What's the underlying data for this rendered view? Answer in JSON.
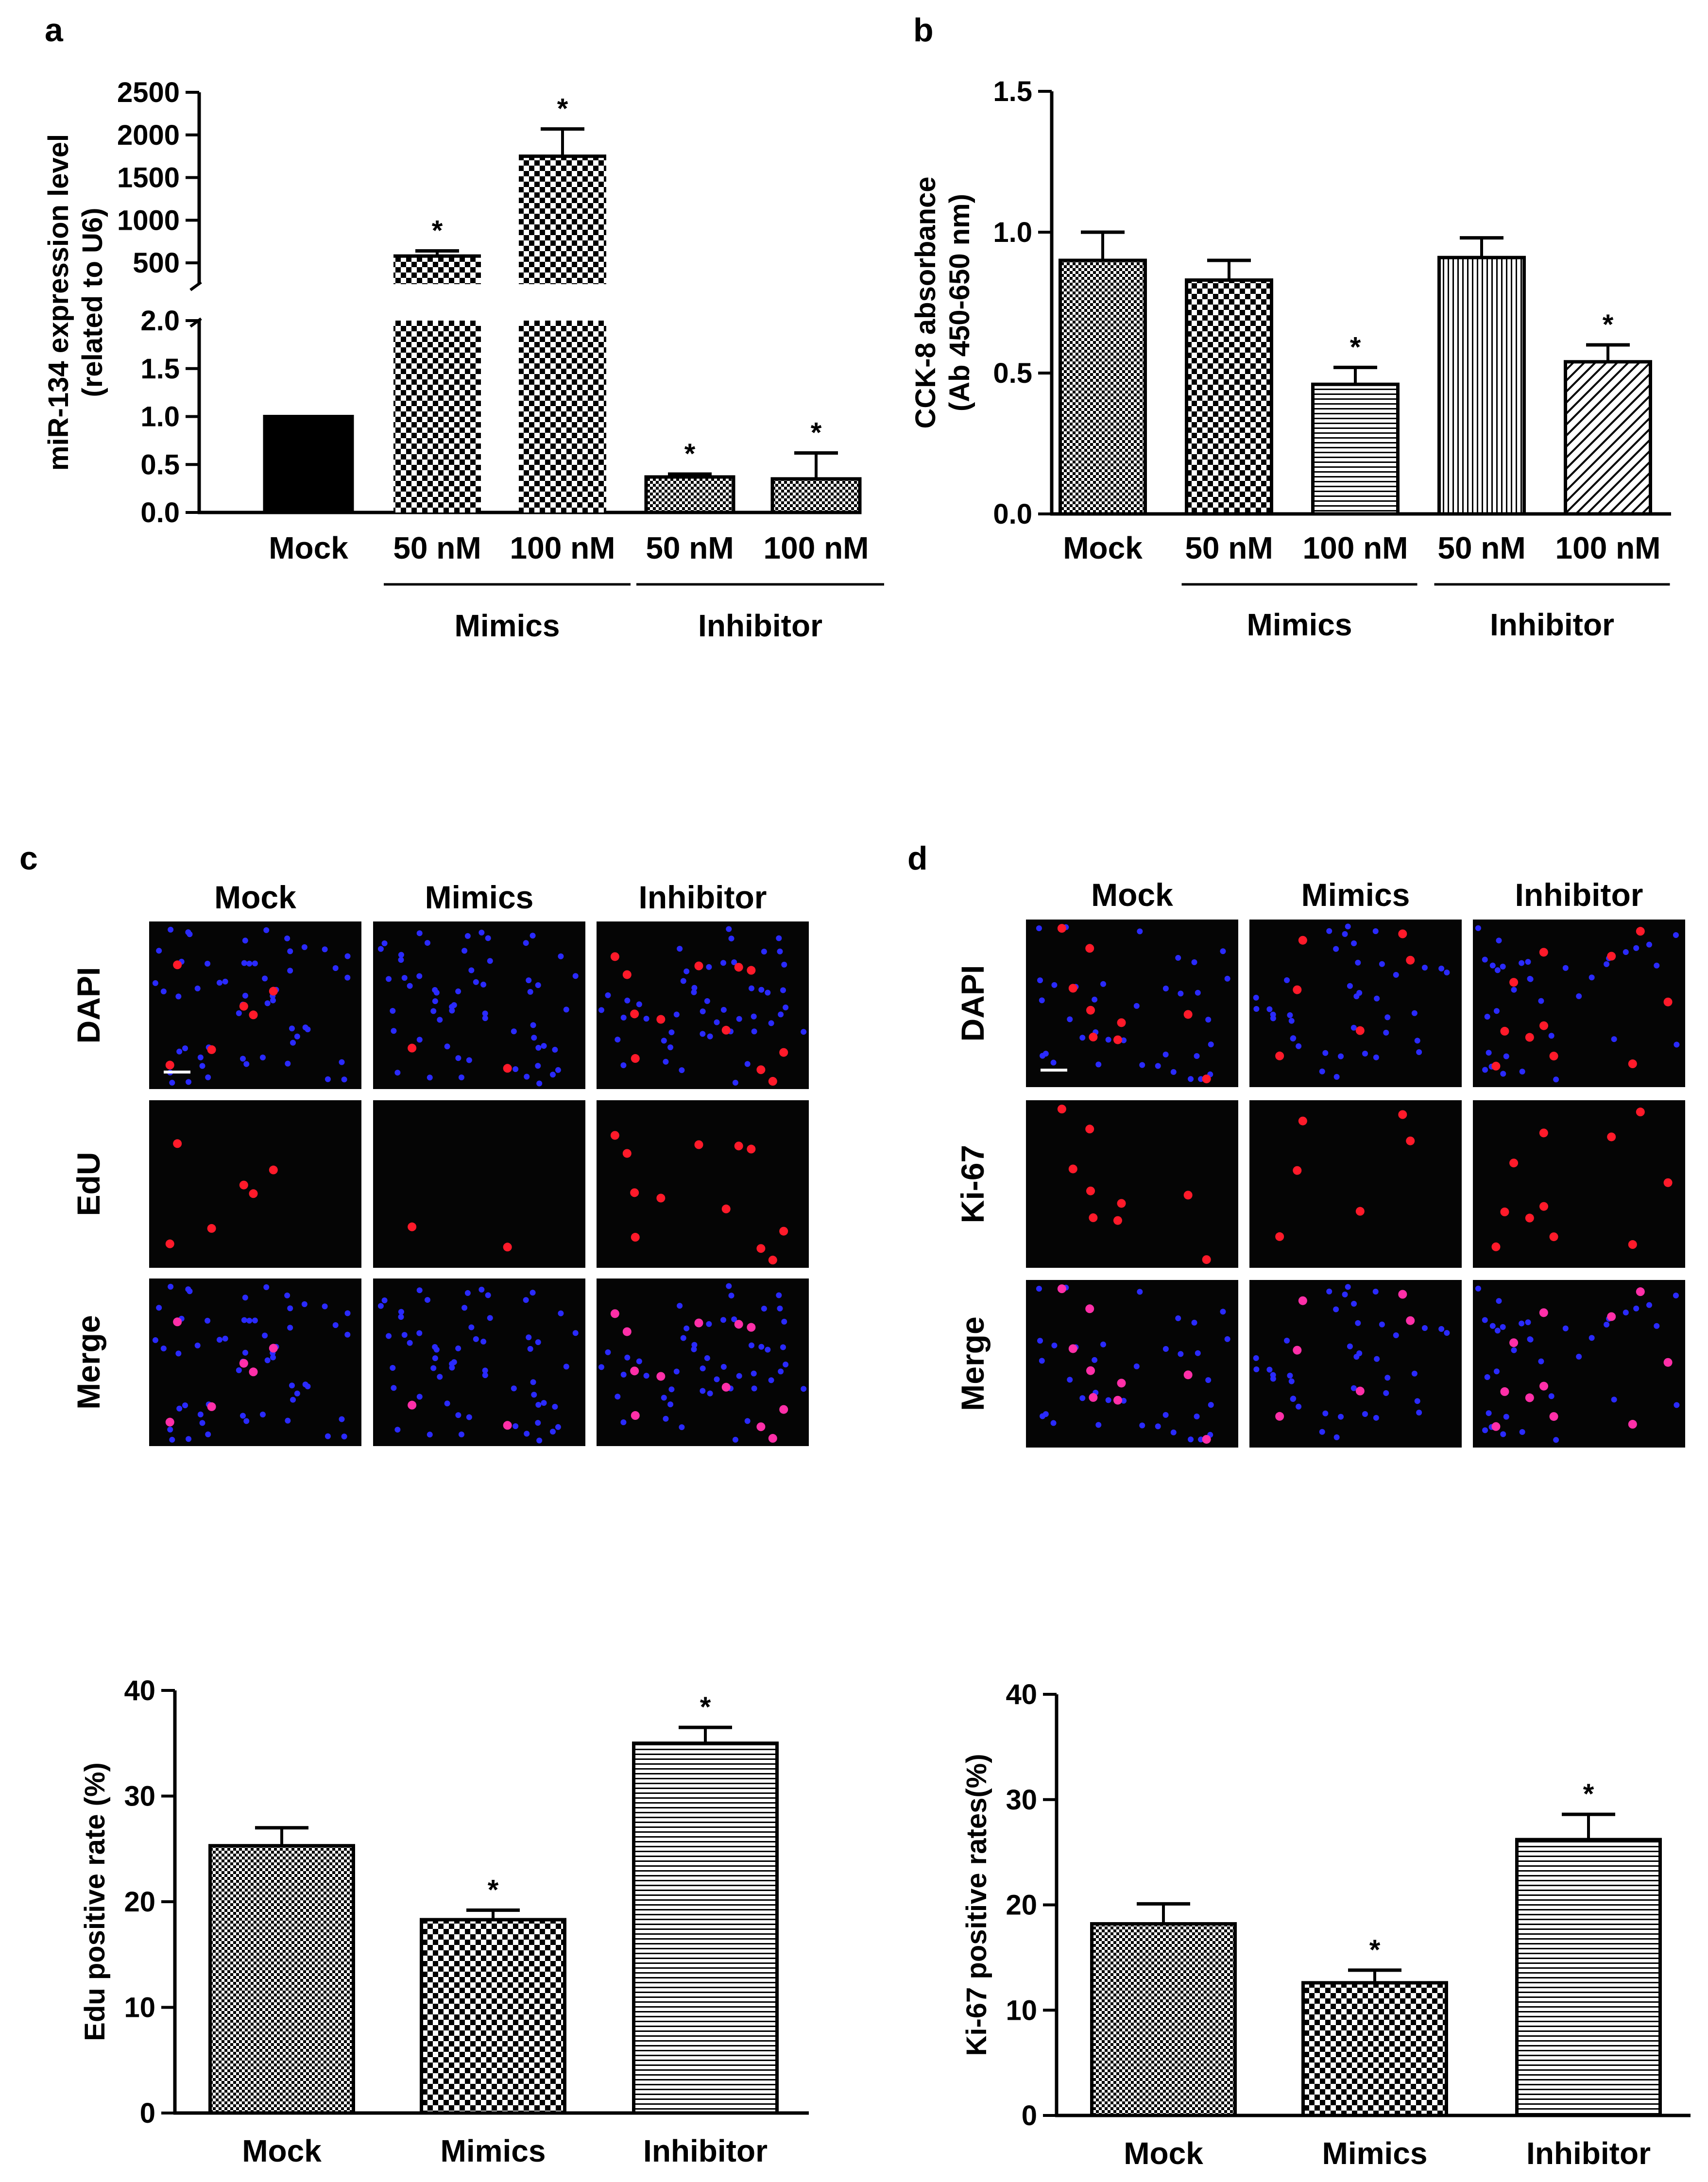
{
  "panel_labels": {
    "a": "a",
    "b": "b",
    "c": "c",
    "d": "d"
  },
  "chart_data": [
    {
      "id": "a",
      "type": "bar",
      "title": "",
      "ylabel_line1": "miR-134 expression level",
      "ylabel_line2": "(related to U6)",
      "categories": [
        "Mock",
        "50 nM",
        "100 nM",
        "50 nM",
        "100 nM"
      ],
      "values": [
        1.0,
        580,
        1750,
        0.37,
        0.35
      ],
      "errors": [
        0,
        60,
        320,
        0.03,
        0.27
      ],
      "significant": [
        false,
        true,
        true,
        true,
        true
      ],
      "patterns": [
        "solid",
        "checker-coarse",
        "checker-coarse",
        "checker-fine",
        "checker-fine"
      ],
      "axis_break": {
        "lower_range": [
          0,
          2.0
        ],
        "upper_range": [
          250,
          2500
        ]
      },
      "lower_ticks": [
        "0.0",
        "0.5",
        "1.0",
        "1.5",
        "2.0"
      ],
      "upper_ticks": [
        "500",
        "1000",
        "1500",
        "2000",
        "2500"
      ],
      "groups": [
        {
          "label": "Mimics",
          "from": 1,
          "to": 2
        },
        {
          "label": "Inhibitor",
          "from": 3,
          "to": 4
        }
      ],
      "sig_marker": "*"
    },
    {
      "id": "b",
      "type": "bar",
      "title": "",
      "ylabel_line1": "CCK-8 absorbance",
      "ylabel_line2": "(Ab 450-650 nm)",
      "categories": [
        "Mock",
        "50 nM",
        "100 nM",
        "50 nM",
        "100 nM"
      ],
      "values": [
        0.9,
        0.83,
        0.46,
        0.91,
        0.54
      ],
      "errors": [
        0.1,
        0.07,
        0.06,
        0.07,
        0.06
      ],
      "significant": [
        false,
        false,
        true,
        false,
        true
      ],
      "patterns": [
        "checker-fine",
        "checker-coarse",
        "hlines",
        "vlines",
        "diagonal"
      ],
      "ylim": [
        0,
        1.5
      ],
      "ticks": [
        "0.0",
        "0.5",
        "1.0",
        "1.5"
      ],
      "tick_values": [
        0,
        0.5,
        1.0,
        1.5
      ],
      "groups": [
        {
          "label": "Mimics",
          "from": 1,
          "to": 2
        },
        {
          "label": "Inhibitor",
          "from": 3,
          "to": 4
        }
      ],
      "sig_marker": "*"
    },
    {
      "id": "c-bar",
      "type": "bar",
      "title": "",
      "ylabel_line1": "Edu positive rate (%)",
      "categories": [
        "Mock",
        "Mimics",
        "Inhibitor"
      ],
      "values": [
        25.3,
        18.3,
        35.0
      ],
      "errors": [
        1.7,
        0.9,
        1.5
      ],
      "significant": [
        false,
        true,
        true
      ],
      "patterns": [
        "checker-fine",
        "checker-coarse",
        "hlines"
      ],
      "ylim": [
        0,
        40
      ],
      "ticks": [
        "0",
        "10",
        "20",
        "30",
        "40"
      ],
      "tick_values": [
        0,
        10,
        20,
        30,
        40
      ],
      "sig_marker": "*"
    },
    {
      "id": "d-bar",
      "type": "bar",
      "title": "",
      "ylabel_line1": "Ki-67 positive rates(%)",
      "categories": [
        "Mock",
        "Mimics",
        "Inhibitor"
      ],
      "values": [
        18.2,
        12.6,
        26.2
      ],
      "errors": [
        1.9,
        1.2,
        2.4
      ],
      "significant": [
        false,
        true,
        true
      ],
      "patterns": [
        "checker-fine",
        "checker-coarse",
        "hlines"
      ],
      "ylim": [
        0,
        40
      ],
      "ticks": [
        "0",
        "10",
        "20",
        "30",
        "40"
      ],
      "tick_values": [
        0,
        10,
        20,
        30,
        40
      ],
      "sig_marker": "*"
    }
  ],
  "micrographs": [
    {
      "id": "c",
      "columns": [
        "Mock",
        "Mimics",
        "Inhibitor"
      ],
      "rows": [
        "DAPI",
        "EdU",
        "Merge"
      ],
      "red_counts": [
        6,
        2,
        12
      ]
    },
    {
      "id": "d",
      "columns": [
        "Mock",
        "Mimics",
        "Inhibitor"
      ],
      "rows": [
        "DAPI",
        "Ki-67",
        "Merge"
      ],
      "red_counts": [
        9,
        6,
        11
      ]
    }
  ],
  "colors": {
    "bar_stroke": "#000000",
    "background": "#ffffff",
    "nucleus": "#2a2aff",
    "positive": "#ff1a2a",
    "merge_positive": "#ff2fa8",
    "micrograph_bg": "#050505"
  }
}
